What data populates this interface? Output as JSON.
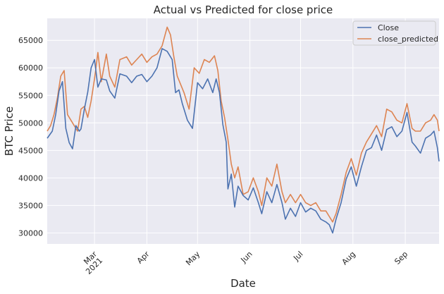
{
  "chart_data": {
    "type": "line",
    "title": "Actual vs Predicted for close price",
    "xlabel": "Date",
    "ylabel": "BTC Price",
    "ylim": [
      28000,
      69000
    ],
    "xlim": [
      "2021-02-01",
      "2021-09-21"
    ],
    "y_ticks": [
      30000,
      35000,
      40000,
      45000,
      50000,
      55000,
      60000,
      65000
    ],
    "x_ticks": [
      {
        "date": "2021-03-01",
        "label": "Mar",
        "sublabel": "2021"
      },
      {
        "date": "2021-04-01",
        "label": "Apr",
        "sublabel": ""
      },
      {
        "date": "2021-05-01",
        "label": "May",
        "sublabel": ""
      },
      {
        "date": "2021-06-01",
        "label": "Jun",
        "sublabel": ""
      },
      {
        "date": "2021-07-01",
        "label": "Jul",
        "sublabel": ""
      },
      {
        "date": "2021-08-01",
        "label": "Aug",
        "sublabel": ""
      },
      {
        "date": "2021-09-01",
        "label": "Sep",
        "sublabel": ""
      }
    ],
    "grid": true,
    "legend_position": "top-right",
    "colors": {
      "background": "#eaeaf2",
      "grid": "#ffffff",
      "close": "#4c72b0",
      "predicted": "#dd8452"
    },
    "series": [
      {
        "name": "Close",
        "x": [
          "2021-02-01",
          "2021-02-04",
          "2021-02-06",
          "2021-02-08",
          "2021-02-10",
          "2021-02-12",
          "2021-02-14",
          "2021-02-16",
          "2021-02-18",
          "2021-02-20",
          "2021-02-21",
          "2021-02-23",
          "2021-02-25",
          "2021-02-27",
          "2021-03-01",
          "2021-03-03",
          "2021-03-05",
          "2021-03-08",
          "2021-03-10",
          "2021-03-13",
          "2021-03-16",
          "2021-03-20",
          "2021-03-23",
          "2021-03-26",
          "2021-03-29",
          "2021-04-01",
          "2021-04-04",
          "2021-04-07",
          "2021-04-10",
          "2021-04-13",
          "2021-04-16",
          "2021-04-18",
          "2021-04-20",
          "2021-04-22",
          "2021-04-25",
          "2021-04-28",
          "2021-05-01",
          "2021-05-04",
          "2021-05-07",
          "2021-05-10",
          "2021-05-12",
          "2021-05-14",
          "2021-05-16",
          "2021-05-18",
          "2021-05-19",
          "2021-05-21",
          "2021-05-23",
          "2021-05-25",
          "2021-05-28",
          "2021-05-31",
          "2021-06-03",
          "2021-06-06",
          "2021-06-08",
          "2021-06-11",
          "2021-06-14",
          "2021-06-17",
          "2021-06-20",
          "2021-06-22",
          "2021-06-25",
          "2021-06-28",
          "2021-07-01",
          "2021-07-04",
          "2021-07-07",
          "2021-07-10",
          "2021-07-13",
          "2021-07-16",
          "2021-07-18",
          "2021-07-20",
          "2021-07-22",
          "2021-07-25",
          "2021-07-28",
          "2021-07-31",
          "2021-08-03",
          "2021-08-06",
          "2021-08-09",
          "2021-08-12",
          "2021-08-15",
          "2021-08-18",
          "2021-08-21",
          "2021-08-24",
          "2021-08-27",
          "2021-08-30",
          "2021-09-02",
          "2021-09-05",
          "2021-09-07",
          "2021-09-10",
          "2021-09-13",
          "2021-09-16",
          "2021-09-18",
          "2021-09-20",
          "2021-09-21"
        ],
        "values": [
          47200,
          48500,
          51500,
          55800,
          57500,
          49000,
          46400,
          45300,
          49500,
          48500,
          48900,
          52500,
          55600,
          60000,
          61500,
          56500,
          58000,
          57800,
          55800,
          54500,
          58900,
          58500,
          57300,
          58500,
          58800,
          57500,
          58500,
          60000,
          63500,
          63000,
          61500,
          55500,
          56000,
          53500,
          50500,
          49000,
          57300,
          56200,
          58000,
          55500,
          58000,
          55500,
          49700,
          46500,
          38000,
          40700,
          34700,
          38500,
          36800,
          36000,
          38200,
          35500,
          33500,
          37500,
          35500,
          38800,
          35500,
          32500,
          34500,
          33000,
          35500,
          33800,
          34500,
          34000,
          32500,
          32000,
          31500,
          30000,
          32500,
          35500,
          39800,
          42000,
          38500,
          42000,
          45000,
          45500,
          47800,
          45000,
          48800,
          49300,
          47500,
          48500,
          51900,
          46500,
          45800,
          44500,
          47200,
          47800,
          48500,
          45500,
          43000
        ]
      },
      {
        "name": "close_predicted",
        "x": [
          "2021-02-01",
          "2021-02-03",
          "2021-02-05",
          "2021-02-07",
          "2021-02-09",
          "2021-02-11",
          "2021-02-13",
          "2021-02-15",
          "2021-02-17",
          "2021-02-19",
          "2021-02-21",
          "2021-02-23",
          "2021-02-25",
          "2021-02-27",
          "2021-03-01",
          "2021-03-03",
          "2021-03-05",
          "2021-03-08",
          "2021-03-10",
          "2021-03-13",
          "2021-03-16",
          "2021-03-20",
          "2021-03-23",
          "2021-03-26",
          "2021-03-29",
          "2021-04-01",
          "2021-04-04",
          "2021-04-07",
          "2021-04-10",
          "2021-04-13",
          "2021-04-15",
          "2021-04-17",
          "2021-04-19",
          "2021-04-21",
          "2021-04-23",
          "2021-04-26",
          "2021-04-29",
          "2021-05-02",
          "2021-05-05",
          "2021-05-08",
          "2021-05-11",
          "2021-05-13",
          "2021-05-15",
          "2021-05-17",
          "2021-05-19",
          "2021-05-21",
          "2021-05-23",
          "2021-05-25",
          "2021-05-28",
          "2021-05-31",
          "2021-06-03",
          "2021-06-06",
          "2021-06-08",
          "2021-06-11",
          "2021-06-14",
          "2021-06-17",
          "2021-06-20",
          "2021-06-22",
          "2021-06-25",
          "2021-06-28",
          "2021-07-01",
          "2021-07-04",
          "2021-07-07",
          "2021-07-10",
          "2021-07-13",
          "2021-07-16",
          "2021-07-18",
          "2021-07-20",
          "2021-07-22",
          "2021-07-25",
          "2021-07-28",
          "2021-07-31",
          "2021-08-03",
          "2021-08-06",
          "2021-08-09",
          "2021-08-12",
          "2021-08-15",
          "2021-08-18",
          "2021-08-21",
          "2021-08-24",
          "2021-08-27",
          "2021-08-30",
          "2021-09-02",
          "2021-09-05",
          "2021-09-07",
          "2021-09-10",
          "2021-09-13",
          "2021-09-16",
          "2021-09-18",
          "2021-09-20",
          "2021-09-21"
        ],
        "values": [
          48500,
          49500,
          51500,
          54500,
          58500,
          59500,
          51500,
          50500,
          49500,
          48500,
          52500,
          53000,
          51000,
          54000,
          58000,
          62800,
          57500,
          62500,
          58500,
          56500,
          61500,
          62000,
          60500,
          61500,
          62500,
          61000,
          62000,
          62500,
          64000,
          67400,
          66000,
          62000,
          58500,
          57000,
          55500,
          52500,
          60000,
          59000,
          61500,
          61000,
          62200,
          59500,
          54000,
          51000,
          47000,
          42500,
          40000,
          42000,
          37000,
          37500,
          40000,
          37500,
          35000,
          40000,
          38500,
          42500,
          37500,
          35500,
          37000,
          35500,
          37000,
          35500,
          35000,
          35500,
          34000,
          34000,
          33000,
          32000,
          33500,
          37000,
          41000,
          43500,
          40500,
          44500,
          46500,
          48000,
          49500,
          47500,
          52500,
          52000,
          50500,
          50000,
          53500,
          49000,
          48500,
          48500,
          50000,
          50500,
          51500,
          50500,
          48500
        ]
      }
    ]
  }
}
